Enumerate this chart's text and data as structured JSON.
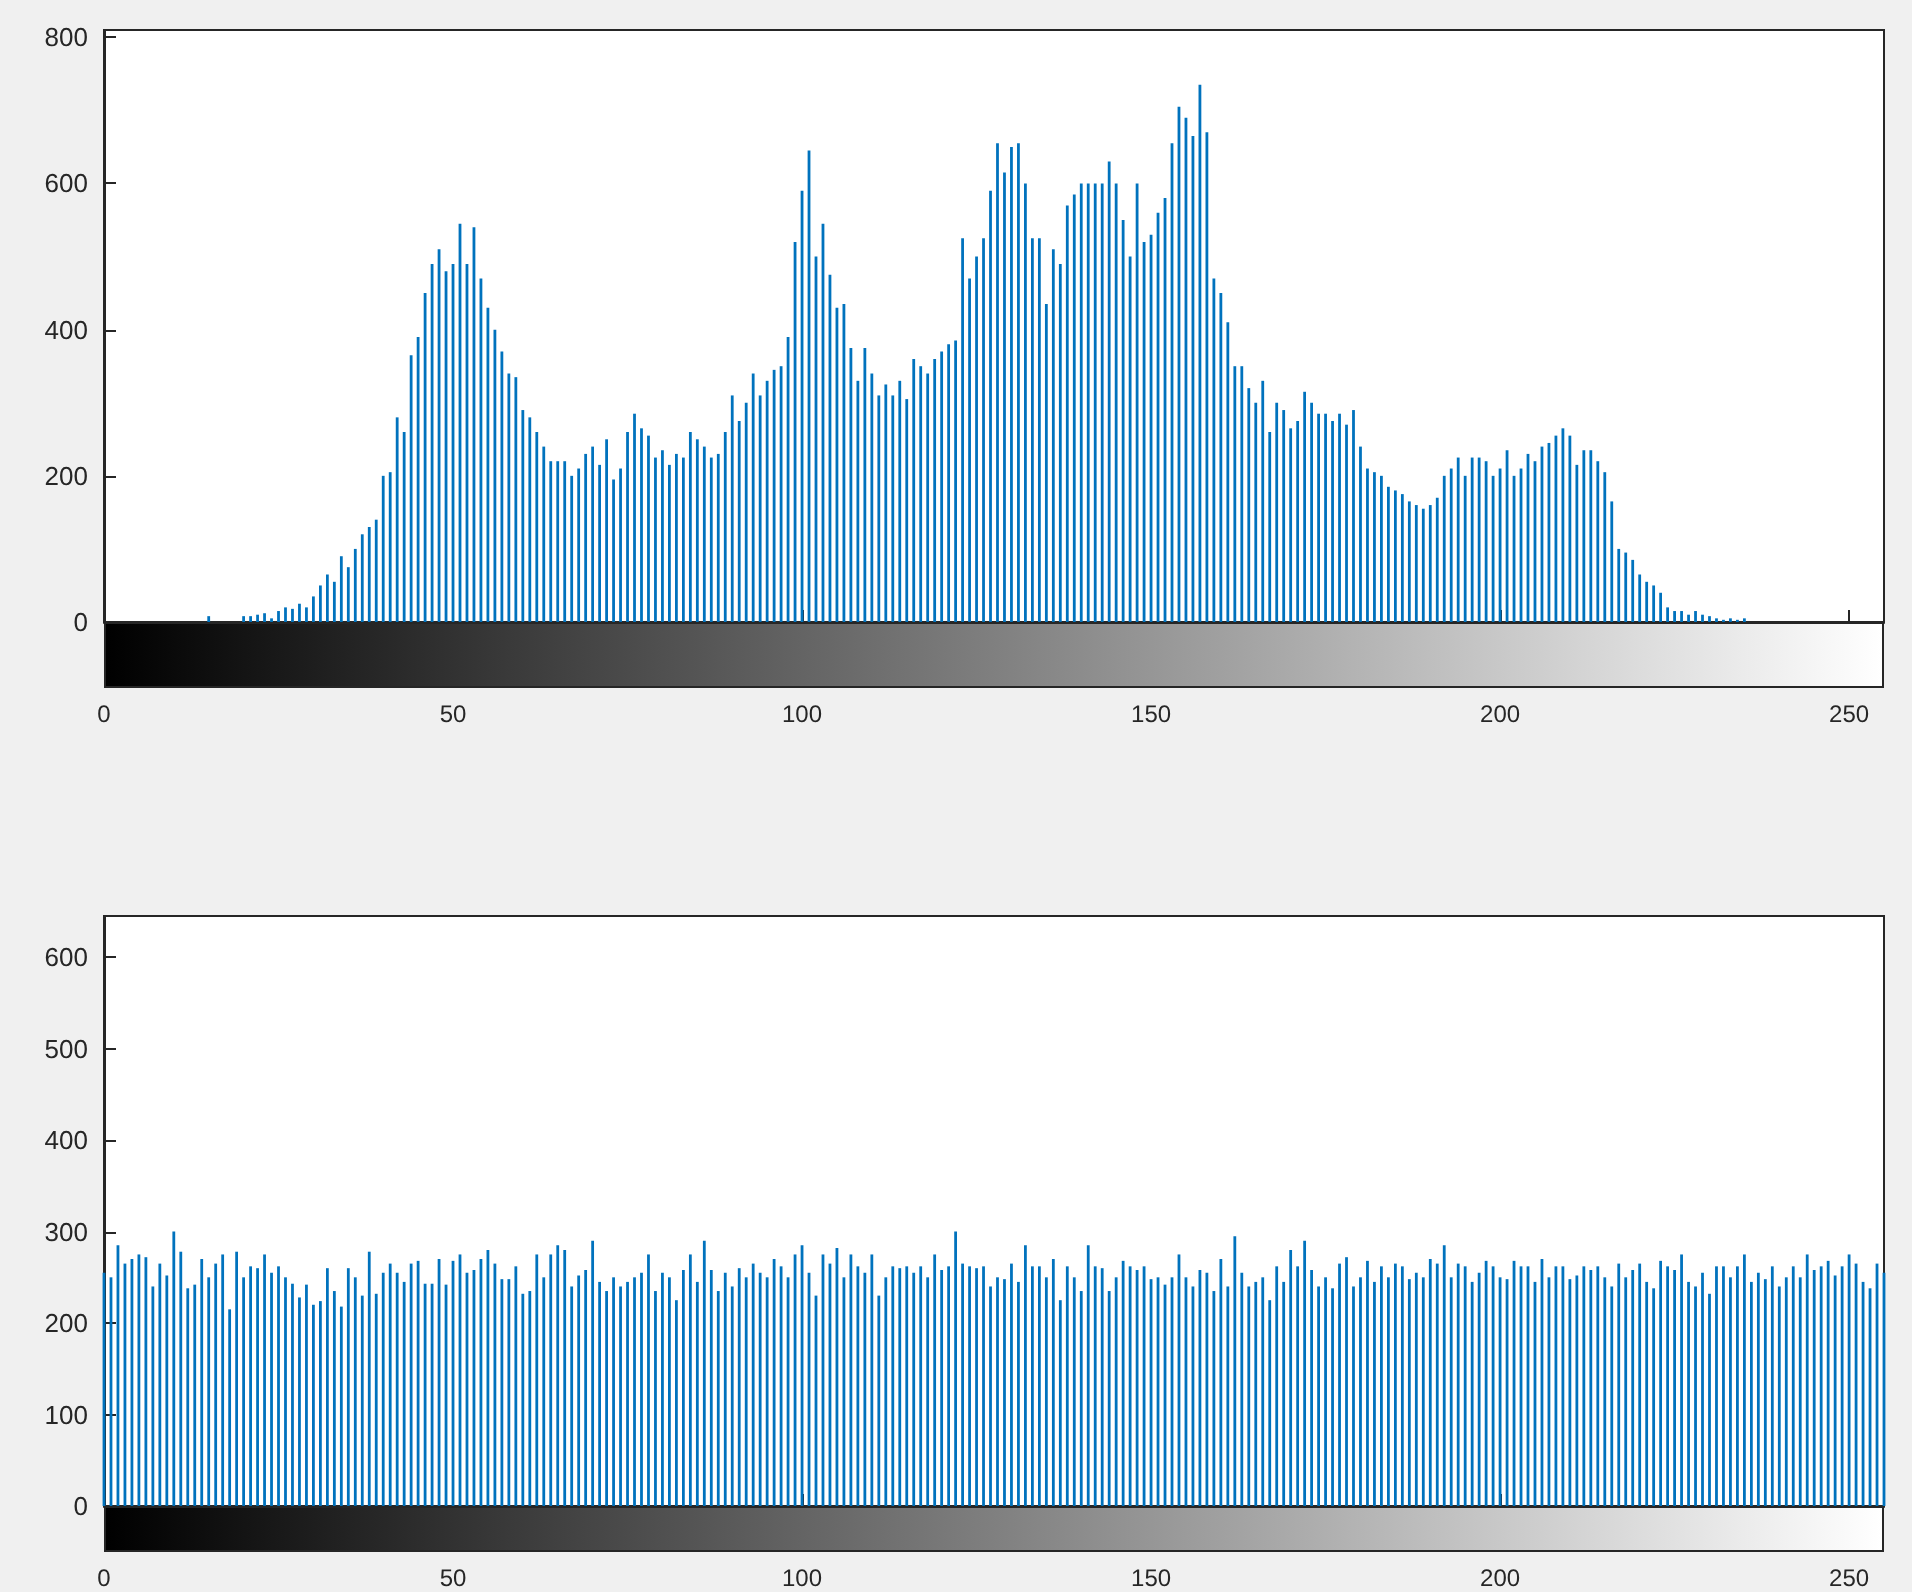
{
  "chart_data": [
    {
      "type": "bar",
      "color": "#0072bd",
      "xlim": [
        0,
        255
      ],
      "xticks": [
        0,
        50,
        100,
        150,
        200,
        250
      ],
      "ylim": [
        0,
        810
      ],
      "yticks": [
        0,
        200,
        400,
        600,
        800
      ],
      "grid": false,
      "x": [
        0,
        1,
        2,
        3,
        4,
        5,
        6,
        7,
        8,
        9,
        10,
        11,
        12,
        13,
        14,
        15,
        16,
        17,
        18,
        19,
        20,
        21,
        22,
        23,
        24,
        25,
        26,
        27,
        28,
        29,
        30,
        31,
        32,
        33,
        34,
        35,
        36,
        37,
        38,
        39,
        40,
        41,
        42,
        43,
        44,
        45,
        46,
        47,
        48,
        49,
        50,
        51,
        52,
        53,
        54,
        55,
        56,
        57,
        58,
        59,
        60,
        61,
        62,
        63,
        64,
        65,
        66,
        67,
        68,
        69,
        70,
        71,
        72,
        73,
        74,
        75,
        76,
        77,
        78,
        79,
        80,
        81,
        82,
        83,
        84,
        85,
        86,
        87,
        88,
        89,
        90,
        91,
        92,
        93,
        94,
        95,
        96,
        97,
        98,
        99,
        100,
        101,
        102,
        103,
        104,
        105,
        106,
        107,
        108,
        109,
        110,
        111,
        112,
        113,
        114,
        115,
        116,
        117,
        118,
        119,
        120,
        121,
        122,
        123,
        124,
        125,
        126,
        127,
        128,
        129,
        130,
        131,
        132,
        133,
        134,
        135,
        136,
        137,
        138,
        139,
        140,
        141,
        142,
        143,
        144,
        145,
        146,
        147,
        148,
        149,
        150,
        151,
        152,
        153,
        154,
        155,
        156,
        157,
        158,
        159,
        160,
        161,
        162,
        163,
        164,
        165,
        166,
        167,
        168,
        169,
        170,
        171,
        172,
        173,
        174,
        175,
        176,
        177,
        178,
        179,
        180,
        181,
        182,
        183,
        184,
        185,
        186,
        187,
        188,
        189,
        190,
        191,
        192,
        193,
        194,
        195,
        196,
        197,
        198,
        199,
        200,
        201,
        202,
        203,
        204,
        205,
        206,
        207,
        208,
        209,
        210,
        211,
        212,
        213,
        214,
        215,
        216,
        217,
        218,
        219,
        220,
        221,
        222,
        223,
        224,
        225,
        226,
        227,
        228,
        229,
        230,
        231,
        232,
        233,
        234,
        235,
        236,
        237,
        238,
        239,
        240,
        241,
        242,
        243,
        244,
        245,
        246,
        247,
        248,
        249,
        250,
        251,
        252,
        253,
        254,
        255
      ],
      "values": [
        0,
        0,
        0,
        0,
        0,
        0,
        0,
        0,
        0,
        0,
        0,
        0,
        0,
        0,
        0,
        8,
        0,
        0,
        0,
        0,
        8,
        8,
        10,
        12,
        5,
        15,
        20,
        18,
        25,
        20,
        35,
        50,
        65,
        55,
        90,
        75,
        100,
        120,
        130,
        140,
        200,
        205,
        280,
        260,
        365,
        390,
        450,
        490,
        510,
        480,
        490,
        545,
        490,
        540,
        470,
        430,
        400,
        370,
        340,
        335,
        290,
        280,
        260,
        240,
        220,
        220,
        220,
        200,
        210,
        230,
        240,
        215,
        250,
        195,
        210,
        260,
        285,
        265,
        255,
        225,
        235,
        215,
        230,
        225,
        260,
        250,
        240,
        225,
        230,
        260,
        310,
        275,
        300,
        340,
        310,
        330,
        345,
        350,
        390,
        520,
        590,
        645,
        500,
        545,
        475,
        430,
        435,
        375,
        330,
        375,
        340,
        310,
        325,
        310,
        330,
        305,
        360,
        350,
        340,
        360,
        370,
        380,
        385,
        525,
        470,
        500,
        525,
        590,
        655,
        615,
        650,
        655,
        600,
        525,
        525,
        435,
        510,
        490,
        570,
        585,
        600,
        600,
        600,
        600,
        630,
        600,
        550,
        500,
        600,
        520,
        530,
        560,
        580,
        655,
        705,
        690,
        665,
        735,
        670,
        470,
        450,
        410,
        350,
        350,
        320,
        300,
        330,
        260,
        300,
        290,
        265,
        275,
        315,
        300,
        285,
        285,
        275,
        285,
        270,
        290,
        240,
        210,
        205,
        200,
        185,
        180,
        175,
        165,
        160,
        155,
        160,
        170,
        200,
        210,
        225,
        200,
        225,
        225,
        220,
        200,
        210,
        235,
        200,
        210,
        230,
        220,
        240,
        245,
        255,
        265,
        255,
        215,
        235,
        235,
        220,
        205,
        165,
        100,
        95,
        85,
        65,
        55,
        50,
        40,
        20,
        15,
        15,
        10,
        15,
        10,
        8,
        5,
        3,
        5,
        3,
        5,
        0,
        0,
        0,
        0,
        0,
        0,
        0,
        0,
        0,
        0,
        0,
        0,
        0,
        0,
        0,
        0,
        0,
        0,
        0,
        0
      ]
    },
    {
      "type": "bar",
      "color": "#0072bd",
      "xlim": [
        0,
        255
      ],
      "xticks": [
        0,
        50,
        100,
        150,
        200,
        250
      ],
      "ylim": [
        0,
        645
      ],
      "yticks": [
        0,
        100,
        200,
        300,
        400,
        500,
        600
      ],
      "grid": false,
      "x": [
        0,
        1,
        2,
        3,
        4,
        5,
        6,
        7,
        8,
        9,
        10,
        11,
        12,
        13,
        14,
        15,
        16,
        17,
        18,
        19,
        20,
        21,
        22,
        23,
        24,
        25,
        26,
        27,
        28,
        29,
        30,
        31,
        32,
        33,
        34,
        35,
        36,
        37,
        38,
        39,
        40,
        41,
        42,
        43,
        44,
        45,
        46,
        47,
        48,
        49,
        50,
        51,
        52,
        53,
        54,
        55,
        56,
        57,
        58,
        59,
        60,
        61,
        62,
        63,
        64,
        65,
        66,
        67,
        68,
        69,
        70,
        71,
        72,
        73,
        74,
        75,
        76,
        77,
        78,
        79,
        80,
        81,
        82,
        83,
        84,
        85,
        86,
        87,
        88,
        89,
        90,
        91,
        92,
        93,
        94,
        95,
        96,
        97,
        98,
        99,
        100,
        101,
        102,
        103,
        104,
        105,
        106,
        107,
        108,
        109,
        110,
        111,
        112,
        113,
        114,
        115,
        116,
        117,
        118,
        119,
        120,
        121,
        122,
        123,
        124,
        125,
        126,
        127,
        128,
        129,
        130,
        131,
        132,
        133,
        134,
        135,
        136,
        137,
        138,
        139,
        140,
        141,
        142,
        143,
        144,
        145,
        146,
        147,
        148,
        149,
        150,
        151,
        152,
        153,
        154,
        155,
        156,
        157,
        158,
        159,
        160,
        161,
        162,
        163,
        164,
        165,
        166,
        167,
        168,
        169,
        170,
        171,
        172,
        173,
        174,
        175,
        176,
        177,
        178,
        179,
        180,
        181,
        182,
        183,
        184,
        185,
        186,
        187,
        188,
        189,
        190,
        191,
        192,
        193,
        194,
        195,
        196,
        197,
        198,
        199,
        200,
        201,
        202,
        203,
        204,
        205,
        206,
        207,
        208,
        209,
        210,
        211,
        212,
        213,
        214,
        215,
        216,
        217,
        218,
        219,
        220,
        221,
        222,
        223,
        224,
        225,
        226,
        227,
        228,
        229,
        230,
        231,
        232,
        233,
        234,
        235,
        236,
        237,
        238,
        239,
        240,
        241,
        242,
        243,
        244,
        245,
        246,
        247,
        248,
        249,
        250,
        251,
        252,
        253,
        254,
        255
      ],
      "values": [
        255,
        250,
        285,
        265,
        270,
        275,
        272,
        240,
        265,
        252,
        300,
        278,
        238,
        242,
        270,
        250,
        265,
        275,
        215,
        278,
        250,
        262,
        260,
        275,
        255,
        262,
        250,
        243,
        228,
        242,
        220,
        224,
        260,
        235,
        218,
        260,
        250,
        230,
        278,
        232,
        255,
        265,
        255,
        245,
        265,
        268,
        243,
        243,
        270,
        242,
        268,
        275,
        255,
        258,
        270,
        280,
        265,
        248,
        248,
        262,
        232,
        235,
        275,
        250,
        275,
        285,
        280,
        240,
        252,
        258,
        290,
        245,
        235,
        250,
        240,
        245,
        250,
        255,
        275,
        235,
        255,
        250,
        225,
        258,
        275,
        245,
        290,
        258,
        235,
        255,
        240,
        260,
        250,
        265,
        255,
        250,
        270,
        262,
        250,
        275,
        285,
        255,
        230,
        275,
        265,
        282,
        250,
        275,
        262,
        255,
        275,
        230,
        250,
        262,
        260,
        262,
        255,
        262,
        250,
        275,
        258,
        262,
        300,
        265,
        262,
        260,
        262,
        240,
        250,
        248,
        265,
        245,
        285,
        262,
        262,
        250,
        270,
        225,
        262,
        250,
        235,
        285,
        262,
        260,
        235,
        250,
        268,
        262,
        258,
        262,
        248,
        250,
        242,
        250,
        275,
        250,
        240,
        258,
        255,
        235,
        270,
        240,
        295,
        255,
        240,
        245,
        250,
        225,
        262,
        245,
        280,
        262,
        290,
        258,
        240,
        250,
        238,
        265,
        272,
        240,
        250,
        268,
        245,
        262,
        250,
        265,
        262,
        248,
        255,
        250,
        270,
        265,
        285,
        250,
        265,
        262,
        245,
        255,
        268,
        262,
        250,
        248,
        268,
        262,
        262,
        245,
        270,
        250,
        262,
        262,
        248,
        252,
        262,
        258,
        262,
        250,
        240,
        265,
        250,
        258,
        265,
        245,
        238,
        268,
        262,
        258,
        275,
        245,
        240,
        255,
        232,
        262,
        262,
        250,
        262,
        275,
        245,
        255,
        248,
        262,
        240,
        250,
        262,
        250,
        275,
        258,
        262,
        268,
        252,
        262,
        275,
        265,
        245,
        238,
        265,
        255
      ]
    }
  ]
}
